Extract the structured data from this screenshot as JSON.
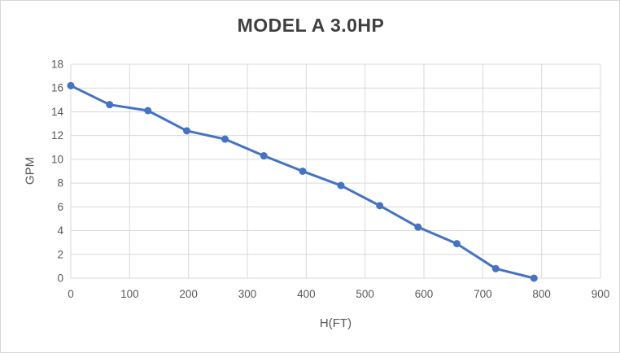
{
  "chart": {
    "title": "MODEL A 3.0HP",
    "x_axis_title": "H(FT)",
    "y_axis_title": "GPM"
  },
  "chart_data": {
    "type": "line",
    "title": "MODEL A 3.0HP",
    "xlabel": "H(FT)",
    "ylabel": "GPM",
    "x": [
      0,
      66,
      131,
      197,
      262,
      328,
      394,
      459,
      525,
      590,
      656,
      722,
      787
    ],
    "y": [
      16.2,
      14.6,
      14.1,
      12.4,
      11.7,
      10.3,
      9.0,
      7.8,
      6.1,
      4.3,
      2.9,
      0.8,
      0
    ],
    "xlim": [
      0,
      900
    ],
    "ylim": [
      0,
      18
    ],
    "x_ticks": [
      0,
      100,
      200,
      300,
      400,
      500,
      600,
      700,
      800,
      900
    ],
    "y_ticks": [
      0,
      2,
      4,
      6,
      8,
      10,
      12,
      14,
      16,
      18
    ],
    "grid": true,
    "legend": false,
    "marker": "circle",
    "colors": {
      "series": "#4472C4",
      "gridline": "#D9D9D9",
      "axis_line": "#D9D9D9",
      "tick_text": "#595959",
      "title_text": "#3F3F3F",
      "background": "#FFFFFF"
    }
  }
}
